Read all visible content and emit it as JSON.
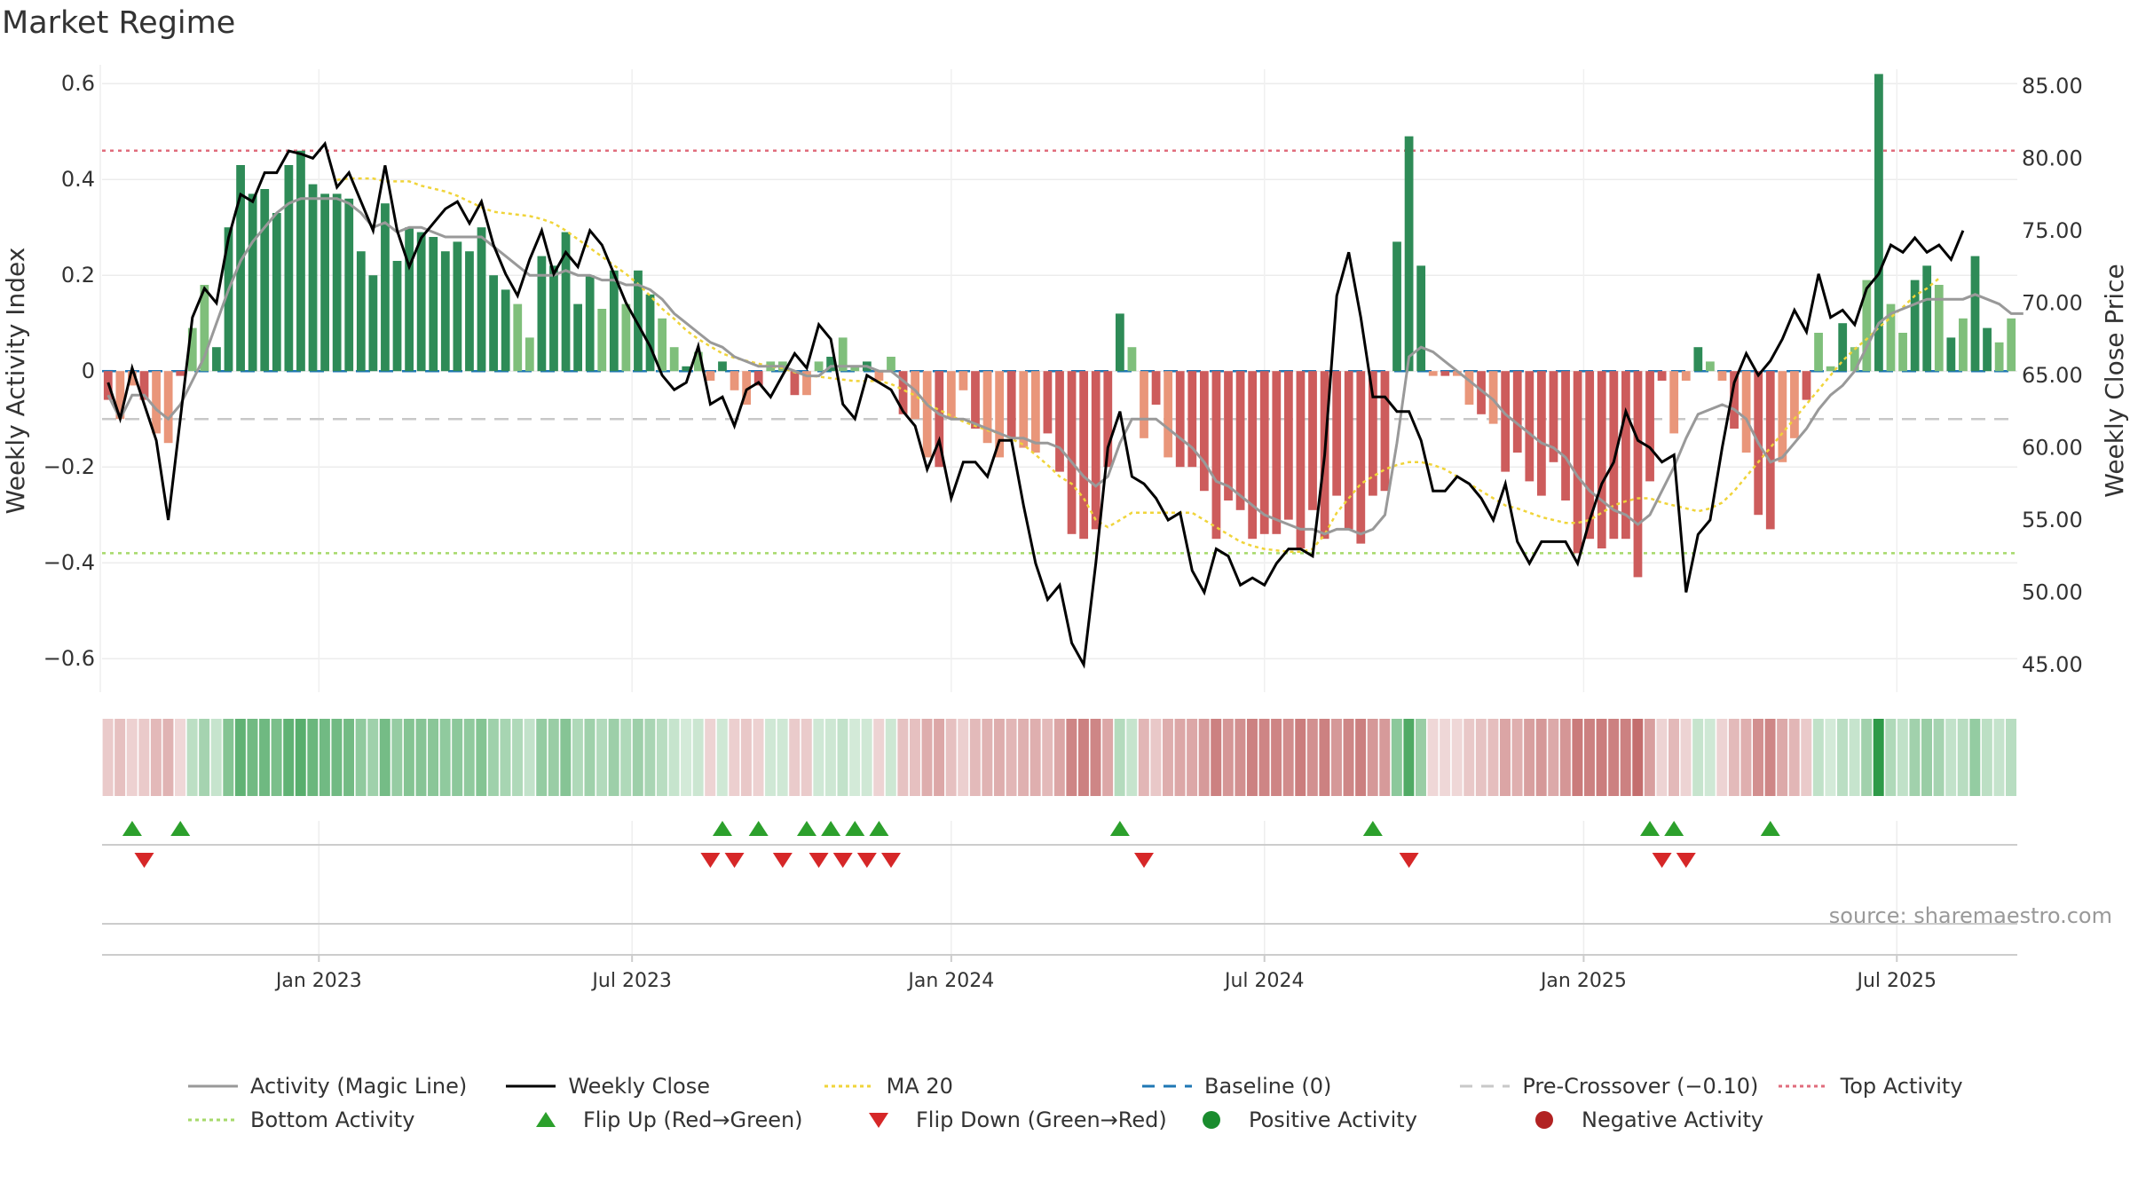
{
  "title": "Market Regime",
  "source_text": "source: sharemaestro.com",
  "chart_data": {
    "type": "bar",
    "title": "Market Regime",
    "ylabel": "Weekly Activity Index",
    "y2label": "Weekly Close Price",
    "ylim": [
      -0.67,
      0.63
    ],
    "y2lim": [
      43.1,
      86.15
    ],
    "yticks": [
      0.6,
      0.4,
      0.2,
      0,
      -0.2,
      -0.4,
      -0.6
    ],
    "ytick_labels": [
      "0.6",
      "0.4",
      "0.2",
      "0",
      "−0.2",
      "−0.4",
      "−0.6"
    ],
    "y2ticks": [
      85.0,
      80.0,
      75.0,
      70.0,
      65.0,
      60.0,
      55.0,
      50.0,
      45.0
    ],
    "y2tick_labels": [
      "85.00",
      "80.00",
      "75.00",
      "70.00",
      "65.00",
      "60.00",
      "55.00",
      "50.00",
      "45.00"
    ],
    "x_labels": [
      {
        "text": "Jan 2023",
        "week": 17.5
      },
      {
        "text": "Jul 2023",
        "week": 43.5
      },
      {
        "text": "Jan 2024",
        "week": 70
      },
      {
        "text": "Jul 2024",
        "week": 96
      },
      {
        "text": "Jan 2025",
        "week": 122.5
      },
      {
        "text": "Jul 2025",
        "week": 148.5
      }
    ],
    "reference_lines": {
      "baseline": 0,
      "pre_crossover": -0.1,
      "top_activity": 0.46,
      "bottom_activity": -0.38
    },
    "colors": {
      "pos_strong": "#2e8b57",
      "pos_weak": "#7fbf7b",
      "neg_strong": "#cd5c5c",
      "neg_weak": "#e9967a",
      "magic_line": "#999999",
      "close": "#000000",
      "ma20": "#f0d43a",
      "baseline": "#1f77b4",
      "pre_crossover": "#c8c8c8",
      "top_activity": "#e06c7c",
      "bottom_activity": "#a6d96a",
      "flip_up": "#2ca02c",
      "flip_down": "#d62728",
      "positive_dot": "#1a8c2e",
      "negative_dot": "#b22222",
      "heat_green": "#2e9a48",
      "heat_red": "#b24040"
    },
    "activity": [
      -0.06,
      -0.1,
      -0.03,
      -0.06,
      -0.13,
      -0.15,
      -0.01,
      0.09,
      0.18,
      0.05,
      0.3,
      0.43,
      0.37,
      0.38,
      0.33,
      0.43,
      0.46,
      0.39,
      0.37,
      0.37,
      0.36,
      0.25,
      0.2,
      0.35,
      0.23,
      0.3,
      0.29,
      0.28,
      0.25,
      0.27,
      0.25,
      0.3,
      0.2,
      0.17,
      0.14,
      0.07,
      0.24,
      0.22,
      0.29,
      0.14,
      0.2,
      0.13,
      0.21,
      0.14,
      0.21,
      0.16,
      0.11,
      0.05,
      0.01,
      0.04,
      -0.02,
      0.02,
      -0.04,
      -0.07,
      -0.03,
      0.02,
      0.02,
      -0.05,
      -0.05,
      0.02,
      0.03,
      0.07,
      0.01,
      0.02,
      -0.02,
      0.03,
      -0.09,
      -0.1,
      -0.18,
      -0.2,
      -0.1,
      -0.04,
      -0.12,
      -0.15,
      -0.18,
      -0.14,
      -0.16,
      -0.17,
      -0.13,
      -0.21,
      -0.34,
      -0.35,
      -0.33,
      -0.2,
      0.12,
      0.05,
      -0.14,
      -0.07,
      -0.18,
      -0.2,
      -0.2,
      -0.25,
      -0.35,
      -0.27,
      -0.29,
      -0.35,
      -0.34,
      -0.34,
      -0.31,
      -0.37,
      -0.29,
      -0.35,
      -0.26,
      -0.33,
      -0.36,
      -0.26,
      -0.25,
      0.27,
      0.49,
      0.22,
      -0.01,
      -0.01,
      -0.01,
      -0.07,
      -0.09,
      -0.11,
      -0.21,
      -0.17,
      -0.23,
      -0.26,
      -0.19,
      -0.27,
      -0.38,
      -0.35,
      -0.37,
      -0.35,
      -0.35,
      -0.43,
      -0.23,
      -0.02,
      -0.13,
      -0.02,
      0.05,
      0.02,
      -0.02,
      -0.12,
      -0.17,
      -0.3,
      -0.33,
      -0.19,
      -0.14,
      -0.06,
      0.08,
      0.01,
      0.1,
      0.05,
      0.19,
      0.62,
      0.14,
      0.08,
      0.19,
      0.22,
      0.18,
      0.07,
      0.11,
      0.24,
      0.09,
      0.06,
      0.11
    ],
    "activity_magic_line": [
      -0.05,
      -0.1,
      -0.05,
      -0.05,
      -0.08,
      -0.1,
      -0.07,
      -0.02,
      0.03,
      0.1,
      0.17,
      0.23,
      0.27,
      0.3,
      0.33,
      0.35,
      0.36,
      0.36,
      0.36,
      0.36,
      0.35,
      0.33,
      0.3,
      0.31,
      0.29,
      0.3,
      0.3,
      0.29,
      0.28,
      0.28,
      0.28,
      0.28,
      0.26,
      0.24,
      0.22,
      0.2,
      0.2,
      0.2,
      0.21,
      0.2,
      0.2,
      0.19,
      0.19,
      0.18,
      0.18,
      0.17,
      0.15,
      0.12,
      0.1,
      0.08,
      0.06,
      0.05,
      0.03,
      0.02,
      0.01,
      0.01,
      0.01,
      0.0,
      -0.01,
      -0.01,
      0.01,
      0.01,
      0.01,
      0.01,
      0.0,
      0.0,
      -0.02,
      -0.04,
      -0.07,
      -0.09,
      -0.1,
      -0.1,
      -0.11,
      -0.12,
      -0.13,
      -0.14,
      -0.14,
      -0.15,
      -0.15,
      -0.16,
      -0.19,
      -0.22,
      -0.24,
      -0.22,
      -0.15,
      -0.1,
      -0.1,
      -0.1,
      -0.12,
      -0.14,
      -0.16,
      -0.19,
      -0.23,
      -0.24,
      -0.26,
      -0.28,
      -0.3,
      -0.31,
      -0.32,
      -0.33,
      -0.33,
      -0.34,
      -0.33,
      -0.33,
      -0.34,
      -0.33,
      -0.3,
      -0.15,
      0.03,
      0.05,
      0.04,
      0.02,
      0.0,
      -0.02,
      -0.04,
      -0.06,
      -0.09,
      -0.11,
      -0.13,
      -0.15,
      -0.16,
      -0.18,
      -0.22,
      -0.25,
      -0.27,
      -0.29,
      -0.3,
      -0.32,
      -0.3,
      -0.25,
      -0.2,
      -0.14,
      -0.09,
      -0.08,
      -0.07,
      -0.08,
      -0.1,
      -0.15,
      -0.19,
      -0.18,
      -0.15,
      -0.12,
      -0.08,
      -0.05,
      -0.03,
      0.0,
      0.05,
      0.1,
      0.12,
      0.13,
      0.14,
      0.15,
      0.15,
      0.15,
      0.15,
      0.16,
      0.15,
      0.14,
      0.12,
      0.12
    ],
    "weekly_close": [
      64.5,
      62.0,
      65.5,
      63.0,
      60.5,
      55.0,
      62.0,
      69.0,
      71.0,
      70.0,
      74.5,
      77.5,
      77.0,
      79.0,
      79.0,
      80.5,
      80.3,
      80.0,
      81.0,
      78.0,
      79.0,
      77.0,
      75.0,
      79.5,
      75.0,
      72.5,
      74.5,
      75.5,
      76.5,
      77.0,
      75.5,
      77.0,
      74.0,
      72.0,
      70.5,
      73.0,
      75.0,
      72.0,
      73.5,
      72.5,
      75.0,
      74.0,
      72.0,
      70.0,
      68.5,
      67.0,
      65.0,
      64.0,
      64.5,
      67.0,
      63.0,
      63.5,
      61.5,
      64.0,
      64.5,
      63.5,
      65.0,
      66.5,
      65.5,
      68.5,
      67.5,
      63.0,
      62.0,
      65.0,
      64.5,
      64.0,
      62.5,
      61.5,
      58.5,
      60.5,
      56.5,
      59.0,
      59.0,
      58.0,
      60.5,
      60.5,
      56.0,
      52.0,
      49.5,
      50.5,
      46.5,
      45.0,
      52.0,
      60.0,
      62.5,
      58.0,
      57.5,
      56.5,
      55.0,
      55.5,
      51.5,
      50.0,
      53.0,
      52.5,
      50.5,
      51.0,
      50.5,
      52.0,
      53.0,
      53.0,
      52.5,
      59.5,
      70.5,
      73.5,
      69.0,
      63.5,
      63.5,
      62.5,
      62.5,
      60.5,
      57.0,
      57.0,
      58.0,
      57.5,
      56.5,
      55.0,
      57.5,
      53.5,
      52.0,
      53.5,
      53.5,
      53.5,
      52.0,
      55.0,
      57.5,
      59.0,
      62.5,
      60.5,
      60.0,
      59.0,
      59.5,
      50.0,
      54.0,
      55.0,
      60.0,
      64.5,
      66.5,
      65.0,
      66.0,
      67.5,
      69.5,
      68.0,
      72.0,
      69.0,
      69.5,
      68.5,
      71.0,
      72.0,
      74.0,
      73.5,
      74.5,
      73.5,
      74.0,
      73.0,
      75.0
    ],
    "ma20": [
      null,
      null,
      null,
      null,
      null,
      null,
      null,
      null,
      null,
      null,
      null,
      null,
      null,
      null,
      null,
      null,
      null,
      null,
      null,
      78.5,
      78.6,
      78.6,
      78.6,
      78.4,
      78.4,
      78.4,
      78.1,
      77.9,
      77.7,
      77.4,
      77.0,
      76.6,
      76.3,
      76.2,
      76.1,
      76.0,
      75.8,
      75.5,
      75.0,
      74.4,
      73.8,
      73.2,
      72.6,
      72.0,
      71.3,
      70.5,
      69.6,
      68.9,
      68.1,
      67.5,
      67.0,
      66.5,
      66.2,
      66.0,
      65.8,
      65.6,
      65.5,
      65.2,
      65.0,
      64.9,
      64.8,
      64.7,
      64.6,
      64.6,
      64.6,
      64.4,
      64.0,
      63.6,
      63.0,
      62.6,
      62.2,
      61.8,
      61.5,
      61.2,
      61.0,
      60.6,
      60.2,
      59.5,
      58.8,
      58.0,
      57.5,
      56.5,
      55.0,
      54.5,
      55.0,
      55.5,
      55.5,
      55.5,
      55.5,
      55.5,
      55.5,
      55.0,
      54.5,
      54.0,
      53.5,
      53.2,
      53.0,
      52.9,
      52.8,
      52.8,
      53.0,
      54.0,
      55.5,
      56.5,
      57.5,
      58.0,
      58.5,
      58.8,
      59.0,
      59.0,
      58.8,
      58.5,
      58.0,
      57.5,
      57.0,
      56.5,
      56.0,
      55.8,
      55.5,
      55.2,
      55.0,
      54.8,
      54.8,
      55.0,
      55.5,
      56.0,
      56.3,
      56.5,
      56.5,
      56.2,
      56.0,
      55.8,
      55.6,
      55.8,
      56.2,
      57.0,
      58.0,
      59.0,
      60.0,
      61.0,
      62.0,
      63.0,
      64.0,
      65.0,
      66.0,
      66.8,
      67.5,
      68.3,
      69.0,
      69.7,
      70.5,
      71.0,
      71.7
    ],
    "flip_up_weeks": [
      2,
      6,
      51,
      54,
      58,
      60,
      62,
      64,
      84,
      105,
      128,
      130,
      138
    ],
    "flip_down_weeks": [
      3,
      50,
      52,
      56,
      59,
      61,
      63,
      65,
      86,
      108,
      129,
      131
    ],
    "series": [
      {
        "name": "Activity (Magic Line)"
      },
      {
        "name": "Weekly Close"
      },
      {
        "name": "MA 20"
      },
      {
        "name": "Baseline (0)"
      },
      {
        "name": "Pre-Crossover (−0.10)"
      },
      {
        "name": "Top Activity"
      },
      {
        "name": "Bottom Activity"
      },
      {
        "name": "Flip Up (Red→Green)"
      },
      {
        "name": "Flip Down (Green→Red)"
      },
      {
        "name": "Positive Activity"
      },
      {
        "name": "Negative Activity"
      }
    ],
    "legend_placement": "bottom",
    "grid": true
  },
  "legend": {
    "row1": [
      {
        "label": "Activity (Magic Line)",
        "icon": "solid-grey-line"
      },
      {
        "label": "Weekly Close",
        "icon": "solid-black-line"
      },
      {
        "label": "MA 20",
        "icon": "dotted-yellow-line"
      },
      {
        "label": "Baseline (0)",
        "icon": "dashed-blue-line"
      },
      {
        "label": "Pre-Crossover (−0.10)",
        "icon": "dashed-grey-line"
      },
      {
        "label": "Top Activity",
        "icon": "dotted-red-line"
      }
    ],
    "row2": [
      {
        "label": "Bottom Activity",
        "icon": "dotted-green-line"
      },
      {
        "label": "Flip Up (Red→Green)",
        "icon": "up-triangle"
      },
      {
        "label": "Flip Down (Green→Red)",
        "icon": "down-triangle"
      },
      {
        "label": "Positive Activity",
        "icon": "green-dot"
      },
      {
        "label": "Negative Activity",
        "icon": "red-dot"
      }
    ]
  }
}
